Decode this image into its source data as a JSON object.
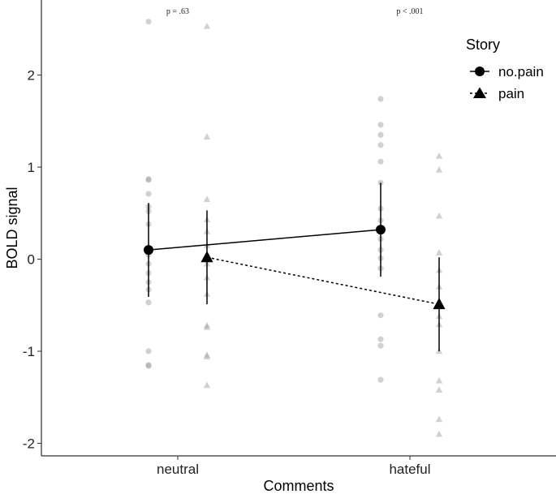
{
  "chart_data": {
    "type": "line",
    "title": "",
    "xlabel": "Comments",
    "ylabel": "BOLD signal",
    "categories": [
      "neutral",
      "hateful"
    ],
    "ylim": [
      -2.25,
      2.75
    ],
    "yticks": [
      -2,
      -1,
      0,
      1,
      2
    ],
    "ytick_labels": [
      "-2",
      "-1",
      "0",
      "1",
      "2"
    ],
    "grid": false,
    "legend": {
      "title": "Story",
      "placement": "top-right",
      "entries": [
        {
          "name": "no.pain",
          "marker": "circle",
          "linestyle": "solid"
        },
        {
          "name": "pain",
          "marker": "triangle",
          "linestyle": "dotted"
        }
      ]
    },
    "annotations": [
      {
        "category": "neutral",
        "text": "p = .63"
      },
      {
        "category": "hateful",
        "text": "p < .001"
      }
    ],
    "series": [
      {
        "name": "no.pain",
        "marker": "circle",
        "linestyle": "solid",
        "means": [
          0.1,
          0.32
        ],
        "ci_low": [
          -0.41,
          -0.19
        ],
        "ci_high": [
          0.61,
          0.83
        ],
        "raw": [
          [
            2.58,
            0.87,
            0.86,
            0.71,
            0.57,
            0.52,
            0.38,
            0.12,
            0.05,
            -0.05,
            -0.15,
            -0.25,
            -0.33,
            -0.47,
            -1.0,
            -1.15,
            -1.16
          ],
          [
            1.74,
            1.46,
            1.35,
            1.24,
            1.06,
            0.83,
            0.55,
            0.42,
            0.22,
            0.1,
            0.01,
            -0.1,
            -0.61,
            -0.87,
            -0.94,
            -1.31
          ]
        ]
      },
      {
        "name": "pain",
        "marker": "triangle",
        "linestyle": "dotted",
        "means": [
          0.02,
          -0.49
        ],
        "ci_low": [
          -0.49,
          -1.0
        ],
        "ci_high": [
          0.53,
          0.02
        ],
        "raw": [
          [
            2.53,
            1.33,
            0.65,
            0.43,
            0.3,
            0.15,
            -0.05,
            -0.2,
            -0.38,
            -0.72,
            -0.74,
            -1.04,
            -1.06,
            -1.37
          ],
          [
            1.12,
            0.97,
            0.47,
            0.07,
            -0.12,
            -0.3,
            -0.62,
            -0.71,
            -1.0,
            -1.32,
            -1.42,
            -1.74,
            -1.9
          ]
        ]
      }
    ]
  }
}
